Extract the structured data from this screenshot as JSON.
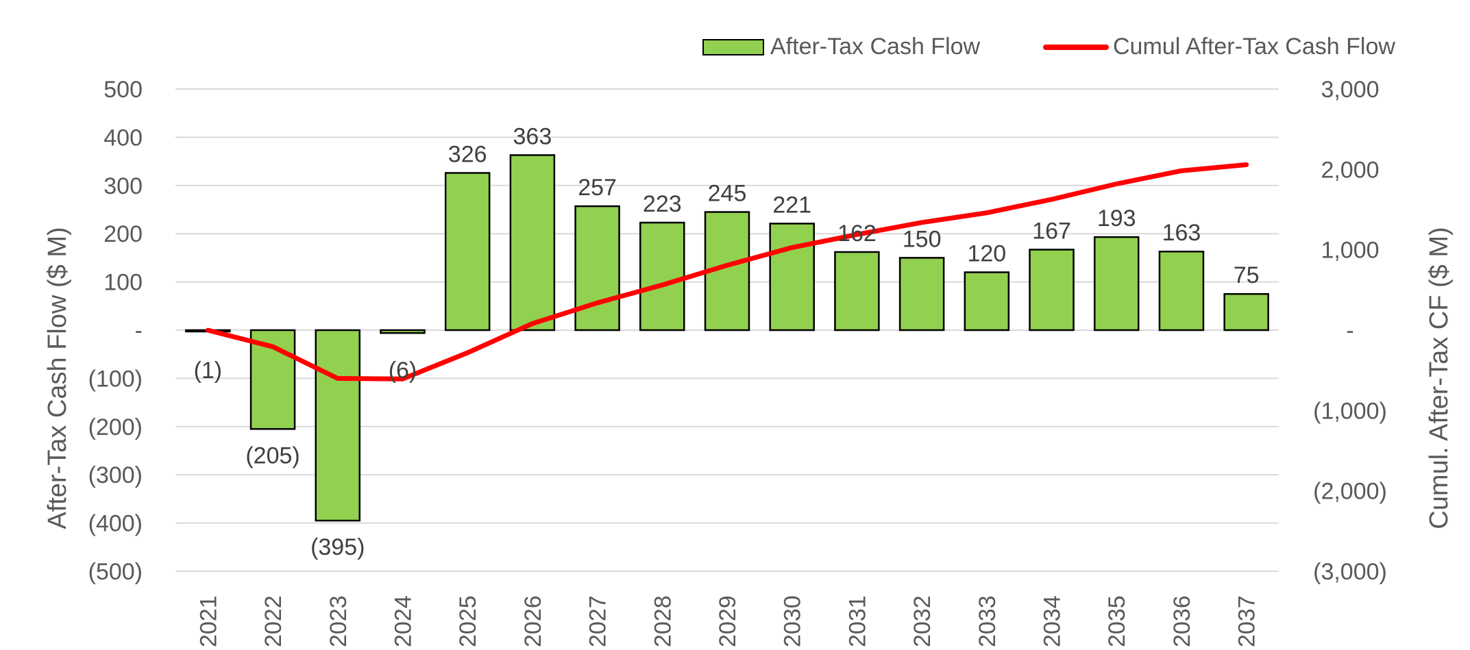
{
  "chart_data": {
    "type": "bar",
    "categories": [
      "2021",
      "2022",
      "2023",
      "2024",
      "2025",
      "2026",
      "2027",
      "2028",
      "2029",
      "2030",
      "2031",
      "2032",
      "2033",
      "2034",
      "2035",
      "2036",
      "2037"
    ],
    "series": [
      {
        "name": "After-Tax Cash Flow",
        "type": "bar",
        "axis": "left",
        "values": [
          -1,
          -205,
          -395,
          -6,
          326,
          363,
          257,
          223,
          245,
          221,
          162,
          150,
          120,
          167,
          193,
          163,
          75
        ],
        "labels": [
          "(1)",
          "(205)",
          "(395)",
          "(6)",
          "326",
          "363",
          "257",
          "223",
          "245",
          "221",
          "162",
          "150",
          "120",
          "167",
          "193",
          "163",
          "75"
        ],
        "color": "#92d050"
      },
      {
        "name": "Cumul After-Tax Cash Flow",
        "type": "line",
        "axis": "right",
        "values": [
          -1,
          -206,
          -601,
          -607,
          -281,
          82,
          339,
          562,
          807,
          1028,
          1190,
          1340,
          1460,
          1627,
          1820,
          1983,
          2058
        ],
        "color": "#ff0000"
      }
    ],
    "y_left": {
      "label": "After-Tax Cash Flow ($ M)",
      "ylim": [
        -500,
        500
      ],
      "ticks": [
        500,
        400,
        300,
        200,
        100,
        0,
        -100,
        -200,
        -300,
        -400,
        -500
      ],
      "tick_labels": [
        "500",
        "400",
        "300",
        "200",
        "100",
        "-",
        "(100)",
        "(200)",
        "(300)",
        "(400)",
        "(500)"
      ]
    },
    "y_right": {
      "label": "Cumul. After-Tax CF ($ M)",
      "ylim": [
        -3000,
        3000
      ],
      "ticks": [
        3000,
        2000,
        1000,
        0,
        -1000,
        -2000,
        -3000
      ],
      "tick_labels": [
        "3,000",
        "2,000",
        "1,000",
        "-",
        "(1,000)",
        "(2,000)",
        "(3,000)"
      ]
    },
    "legend": {
      "position": "top-right"
    },
    "grid": true,
    "colors": {
      "bar_fill": "#92d050",
      "bar_stroke": "#000000",
      "line": "#ff0000",
      "grid": "#d9d9d9",
      "text": "#595959"
    }
  }
}
